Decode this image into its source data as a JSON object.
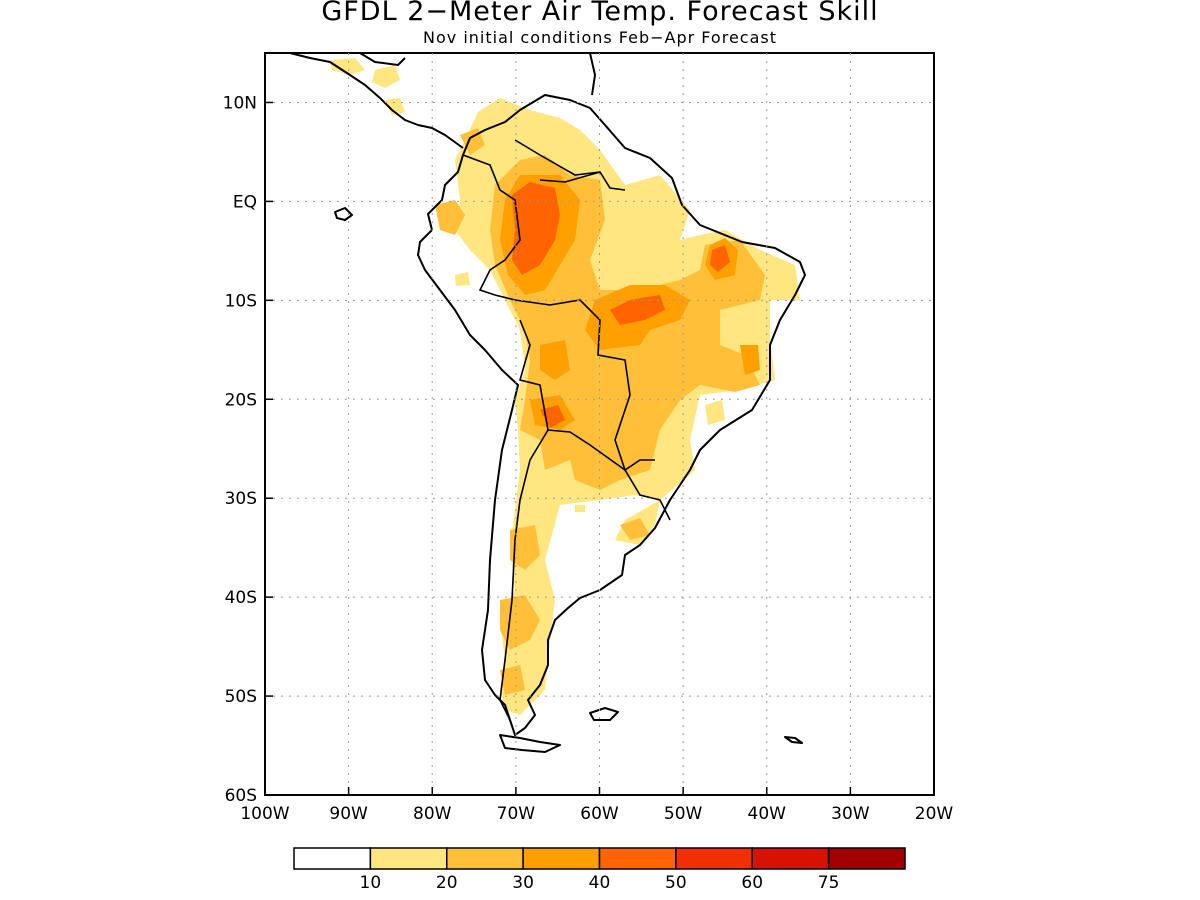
{
  "title": "GFDL 2−Meter Air Temp. Forecast Skill",
  "subtitle": "Nov initial conditions  Feb−Apr Forecast",
  "map": {
    "lon_range": [
      -100,
      -20
    ],
    "lat_range": [
      -60,
      15
    ],
    "lon_ticks": [
      {
        "value": -100,
        "label": "100W"
      },
      {
        "value": -90,
        "label": "90W"
      },
      {
        "value": -80,
        "label": "80W"
      },
      {
        "value": -70,
        "label": "70W"
      },
      {
        "value": -60,
        "label": "60W"
      },
      {
        "value": -50,
        "label": "50W"
      },
      {
        "value": -40,
        "label": "40W"
      },
      {
        "value": -30,
        "label": "30W"
      },
      {
        "value": -20,
        "label": "20W"
      }
    ],
    "lat_ticks": [
      {
        "value": 10,
        "label": "10N"
      },
      {
        "value": 0,
        "label": "EQ"
      },
      {
        "value": -10,
        "label": "10S"
      },
      {
        "value": -20,
        "label": "20S"
      },
      {
        "value": -30,
        "label": "30S"
      },
      {
        "value": -40,
        "label": "40S"
      },
      {
        "value": -50,
        "label": "50S"
      },
      {
        "value": -60,
        "label": "60S"
      }
    ],
    "grid": "dotted"
  },
  "colorbar": {
    "colors": [
      "#ffffff",
      "#ffe680",
      "#ffbf38",
      "#ff9f00",
      "#ff6400",
      "#f03000",
      "#d81200",
      "#a00000"
    ],
    "labels": [
      "10",
      "20",
      "30",
      "40",
      "50",
      "60",
      "75"
    ]
  }
}
